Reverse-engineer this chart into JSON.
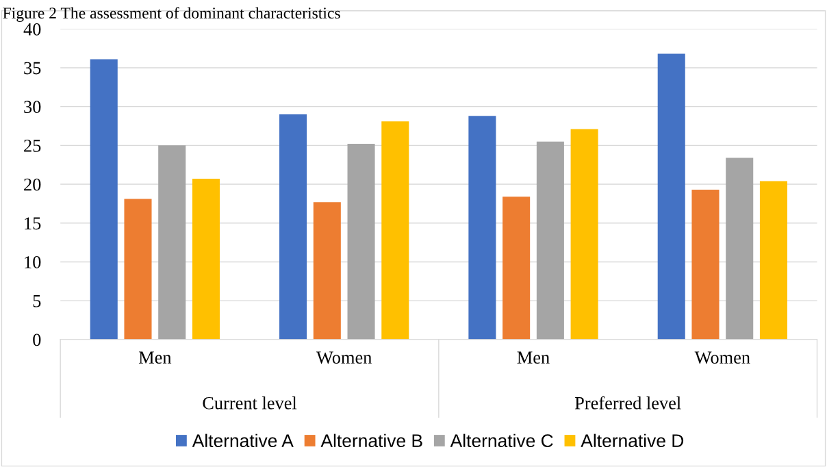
{
  "chart_data": {
    "type": "bar",
    "title": "Figure 2 The assessment of dominant characteristics",
    "categories": [
      "Men",
      "Women",
      "Men",
      "Women"
    ],
    "series": [
      {
        "name": "Alternative A",
        "color": "#4472c4",
        "values": [
          36.1,
          29.0,
          28.8,
          36.8
        ]
      },
      {
        "name": "Alternative B",
        "color": "#ed7d31",
        "values": [
          18.1,
          17.7,
          18.4,
          19.3
        ]
      },
      {
        "name": "Alternative C",
        "color": "#a5a5a5",
        "values": [
          25.0,
          25.2,
          25.5,
          23.4
        ]
      },
      {
        "name": "Alternative D",
        "color": "#ffc000",
        "values": [
          20.7,
          28.1,
          27.1,
          20.4
        ]
      }
    ],
    "annotations": [
      "Current level",
      "Preferred level"
    ],
    "ylim": [
      0,
      40
    ],
    "yticks": [
      0,
      5,
      10,
      15,
      20,
      25,
      30,
      35,
      40
    ],
    "grid": "y",
    "legend": "bottom"
  }
}
